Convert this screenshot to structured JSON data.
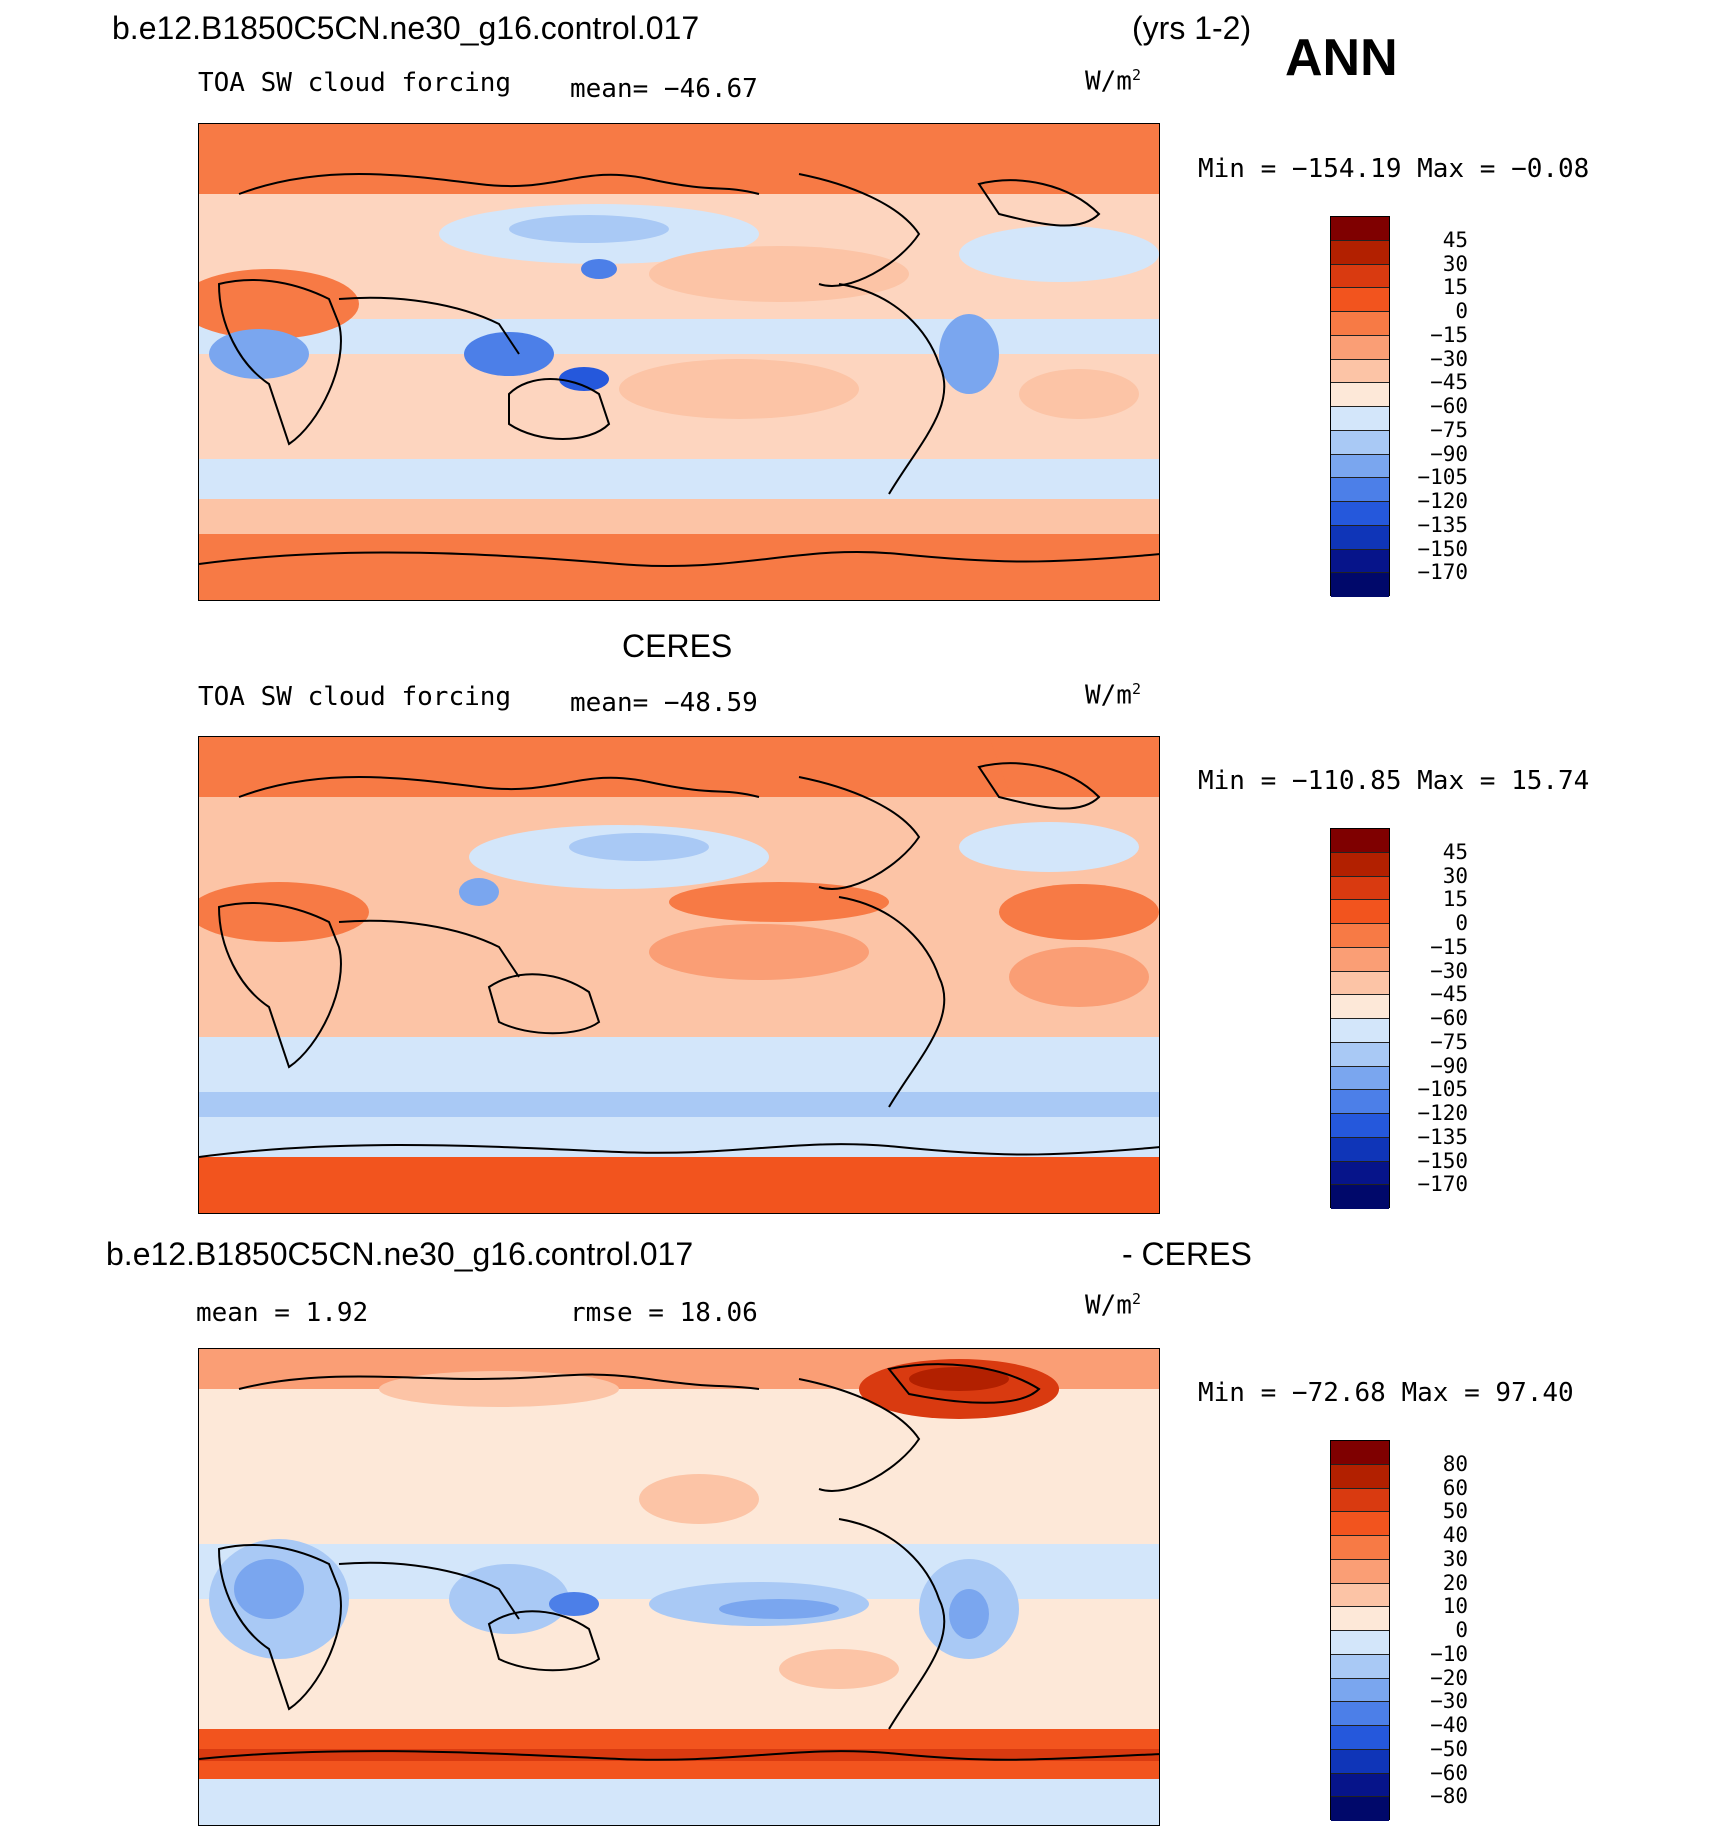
{
  "header": {
    "case_name": "b.e12.B1850C5CN.ne30_g16.control.017",
    "years": "(yrs 1-2)",
    "season": "ANN"
  },
  "panels": [
    {
      "id": "model",
      "field": "TOA SW cloud forcing",
      "mean_text": "mean= −46.67",
      "units": "W/m",
      "units_exp": "2",
      "minmax_text": "Min = −154.19 Max =  −0.08",
      "colorbar_labels": [
        "45",
        "30",
        "15",
        "0",
        "−15",
        "−30",
        "−45",
        "−60",
        "−75",
        "−90",
        "−105",
        "−120",
        "−135",
        "−150",
        "−170"
      ]
    },
    {
      "id": "obs",
      "source_title": "CERES",
      "field": "TOA SW cloud forcing",
      "mean_text": "mean= −48.59",
      "units": "W/m",
      "units_exp": "2",
      "minmax_text": "Min = −110.85 Max =  15.74",
      "colorbar_labels": [
        "45",
        "30",
        "15",
        "0",
        "−15",
        "−30",
        "−45",
        "−60",
        "−75",
        "−90",
        "−105",
        "−120",
        "−135",
        "−150",
        "−170"
      ]
    },
    {
      "id": "diff",
      "title_left": "b.e12.B1850C5CN.ne30_g16.control.017",
      "title_right": "- CERES",
      "mean_text": "mean =   1.92",
      "rmse_text": "rmse =  18.06",
      "units": "W/m",
      "units_exp": "2",
      "minmax_text": "Min = −72.68 Max =  97.40",
      "colorbar_labels": [
        "80",
        "60",
        "50",
        "40",
        "30",
        "20",
        "10",
        "0",
        "−10",
        "−20",
        "−30",
        "−40",
        "−50",
        "−60",
        "−80"
      ]
    }
  ],
  "colors": {
    "colorbar": [
      "#7f0000",
      "#b22000",
      "#d93a10",
      "#f2541e",
      "#f77a45",
      "#fa9e75",
      "#fcc4a6",
      "#fde8d8",
      "#d3e6fa",
      "#a9c9f5",
      "#7aa6ef",
      "#4c7fe8",
      "#2558dc",
      "#0f35b8",
      "#06148a",
      "#00086a"
    ],
    "ocean_warm": "#fdd5bf",
    "polar": "#f77a45",
    "storm_track": "#d3e6fa",
    "land_edge": "#000000"
  }
}
